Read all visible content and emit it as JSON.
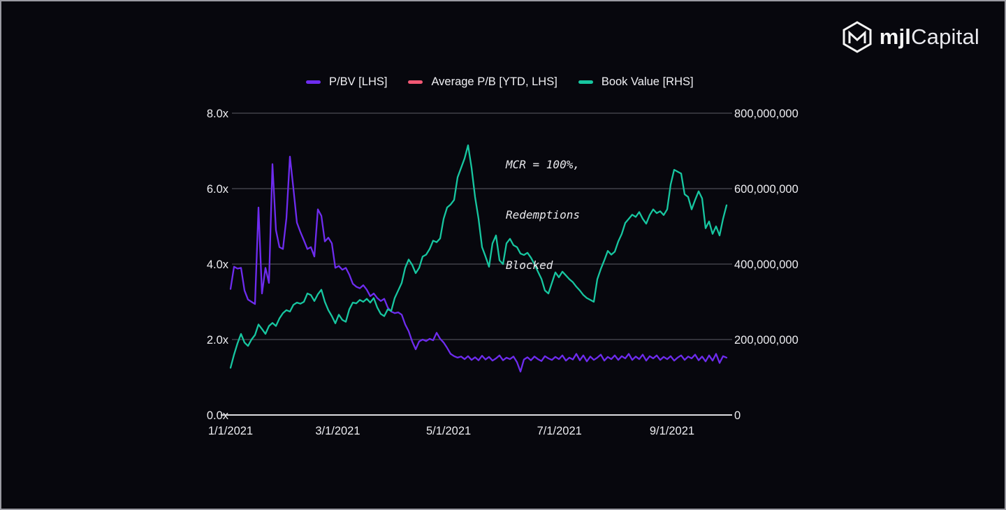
{
  "brand": {
    "name_bold": "mjl",
    "name_light": "Capital",
    "icon": "mjl-cube-hexagon-icon"
  },
  "legend": [
    {
      "label": "P/BV [LHS]",
      "color": "#6E2CEF"
    },
    {
      "label": "Average P/B [YTD, LHS]",
      "color": "#F25874"
    },
    {
      "label": "Book Value [RHS]",
      "color": "#17C6A0"
    }
  ],
  "annotation": {
    "lines": [
      "MCR = 100%,",
      "Redemptions",
      "Blocked"
    ]
  },
  "colors": {
    "background": "#07070D",
    "grid": "#41414A",
    "axis_baseline": "#DCDCE0",
    "text": "#EDEDF1",
    "border": "#9A9AA2"
  },
  "chart_data": {
    "type": "line",
    "title": "",
    "grid": "horizontal",
    "legend_position": "top-center",
    "x_axis": {
      "tick_labels": [
        "1/1/2021",
        "3/1/2021",
        "5/1/2021",
        "7/1/2021",
        "9/1/2021"
      ],
      "tick_days": [
        0,
        59,
        120,
        181,
        243
      ],
      "total_days": 273
    },
    "y_left": {
      "range": [
        0,
        8
      ],
      "tick_values": [
        0,
        2,
        4,
        6,
        8
      ],
      "tick_labels": [
        "0.0x",
        "2.0x",
        "4.0x",
        "6.0x",
        "8.0x"
      ]
    },
    "y_right": {
      "range": [
        0,
        800000000
      ],
      "tick_values": [
        0,
        200000000,
        400000000,
        600000000,
        800000000
      ],
      "tick_labels": [
        "0",
        "200,000,000",
        "400,000,000",
        "600,000,000",
        "800,000,000"
      ]
    },
    "series": [
      {
        "name": "P/BV [LHS]",
        "axis": "left",
        "color": "#6E2CEF",
        "values": [
          3.34,
          3.93,
          3.88,
          3.9,
          3.3,
          3.06,
          3.0,
          2.94,
          5.5,
          3.22,
          3.9,
          3.5,
          6.65,
          4.9,
          4.45,
          4.4,
          5.22,
          6.85,
          6.0,
          5.1,
          4.85,
          4.63,
          4.4,
          4.45,
          4.2,
          5.45,
          5.28,
          4.6,
          4.7,
          4.55,
          3.9,
          3.95,
          3.85,
          3.9,
          3.72,
          3.48,
          3.4,
          3.36,
          3.44,
          3.32,
          3.15,
          3.22,
          3.1,
          3.02,
          3.08,
          2.85,
          2.74,
          2.7,
          2.72,
          2.66,
          2.4,
          2.22,
          1.95,
          1.74,
          1.95,
          2.0,
          1.96,
          2.02,
          1.98,
          2.18,
          2.02,
          1.92,
          1.78,
          1.62,
          1.56,
          1.52,
          1.55,
          1.48,
          1.56,
          1.46,
          1.53,
          1.45,
          1.57,
          1.47,
          1.54,
          1.44,
          1.5,
          1.58,
          1.45,
          1.52,
          1.48,
          1.55,
          1.4,
          1.15,
          1.47,
          1.53,
          1.45,
          1.55,
          1.48,
          1.43,
          1.56,
          1.5,
          1.46,
          1.54,
          1.48,
          1.58,
          1.44,
          1.52,
          1.47,
          1.62,
          1.45,
          1.58,
          1.42,
          1.55,
          1.46,
          1.52,
          1.6,
          1.44,
          1.54,
          1.48,
          1.58,
          1.46,
          1.56,
          1.5,
          1.62,
          1.46,
          1.55,
          1.48,
          1.6,
          1.44,
          1.56,
          1.5,
          1.58,
          1.46,
          1.54,
          1.48,
          1.56,
          1.44,
          1.52,
          1.58,
          1.46,
          1.55,
          1.5,
          1.6,
          1.45,
          1.55,
          1.42,
          1.58,
          1.44,
          1.62,
          1.38,
          1.56,
          1.52
        ]
      },
      {
        "name": "Average P/B [YTD, LHS]",
        "axis": "left",
        "color": "#F25874",
        "visible_in_plot": false,
        "values": []
      },
      {
        "name": "Book Value [RHS]",
        "axis": "right",
        "color": "#17C6A0",
        "values_unit": "millions",
        "values": [
          125,
          160,
          190,
          215,
          192,
          183,
          200,
          212,
          240,
          228,
          215,
          236,
          244,
          236,
          256,
          270,
          278,
          274,
          292,
          298,
          295,
          300,
          322,
          318,
          302,
          320,
          332,
          300,
          278,
          262,
          243,
          266,
          252,
          247,
          280,
          298,
          296,
          305,
          300,
          308,
          298,
          310,
          285,
          268,
          262,
          280,
          276,
          310,
          330,
          350,
          390,
          412,
          398,
          376,
          390,
          420,
          425,
          440,
          462,
          458,
          468,
          520,
          550,
          558,
          570,
          630,
          655,
          680,
          715,
          655,
          578,
          520,
          445,
          420,
          393,
          455,
          476,
          410,
          400,
          455,
          467,
          450,
          445,
          428,
          424,
          430,
          417,
          400,
          380,
          361,
          330,
          322,
          350,
          378,
          365,
          380,
          370,
          360,
          352,
          340,
          330,
          318,
          310,
          305,
          300,
          360,
          387,
          410,
          435,
          425,
          433,
          460,
          480,
          509,
          520,
          531,
          525,
          538,
          520,
          507,
          530,
          545,
          535,
          540,
          530,
          545,
          611,
          650,
          645,
          640,
          585,
          578,
          545,
          570,
          593,
          574,
          495,
          513,
          480,
          500,
          476,
          520,
          556
        ]
      }
    ]
  }
}
